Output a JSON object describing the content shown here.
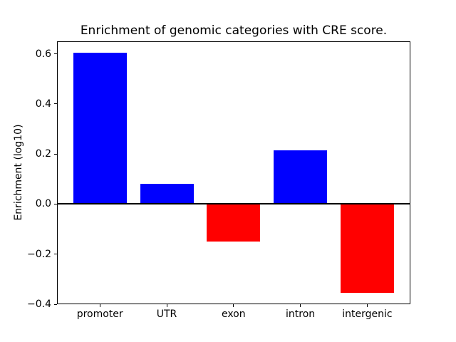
{
  "figure": {
    "background": "#ffffff",
    "axis_color": "#000000"
  },
  "chart_data": {
    "type": "bar",
    "title": "Enrichment of genomic categories with CRE score.",
    "xlabel": "",
    "ylabel": "Enrichment (log10)",
    "categories": [
      "promoter",
      "UTR",
      "exon",
      "intron",
      "intergenic"
    ],
    "values": [
      0.605,
      0.08,
      -0.15,
      0.215,
      -0.355
    ],
    "bar_colors": [
      "#0000ff",
      "#0000ff",
      "#ff0000",
      "#0000ff",
      "#ff0000"
    ],
    "positive_color": "#0000ff",
    "negative_color": "#ff0000",
    "yticks": [
      {
        "value": 0.6,
        "label": "0.6"
      },
      {
        "value": 0.4,
        "label": "0.4"
      },
      {
        "value": 0.2,
        "label": "0.2"
      },
      {
        "value": 0.0,
        "label": "0.0"
      },
      {
        "value": -0.2,
        "label": "−0.2"
      },
      {
        "value": -0.4,
        "label": "−0.4"
      }
    ],
    "ylim": [
      -0.4,
      0.65
    ],
    "grid": false,
    "zero_line": true,
    "legend_position": "none"
  }
}
